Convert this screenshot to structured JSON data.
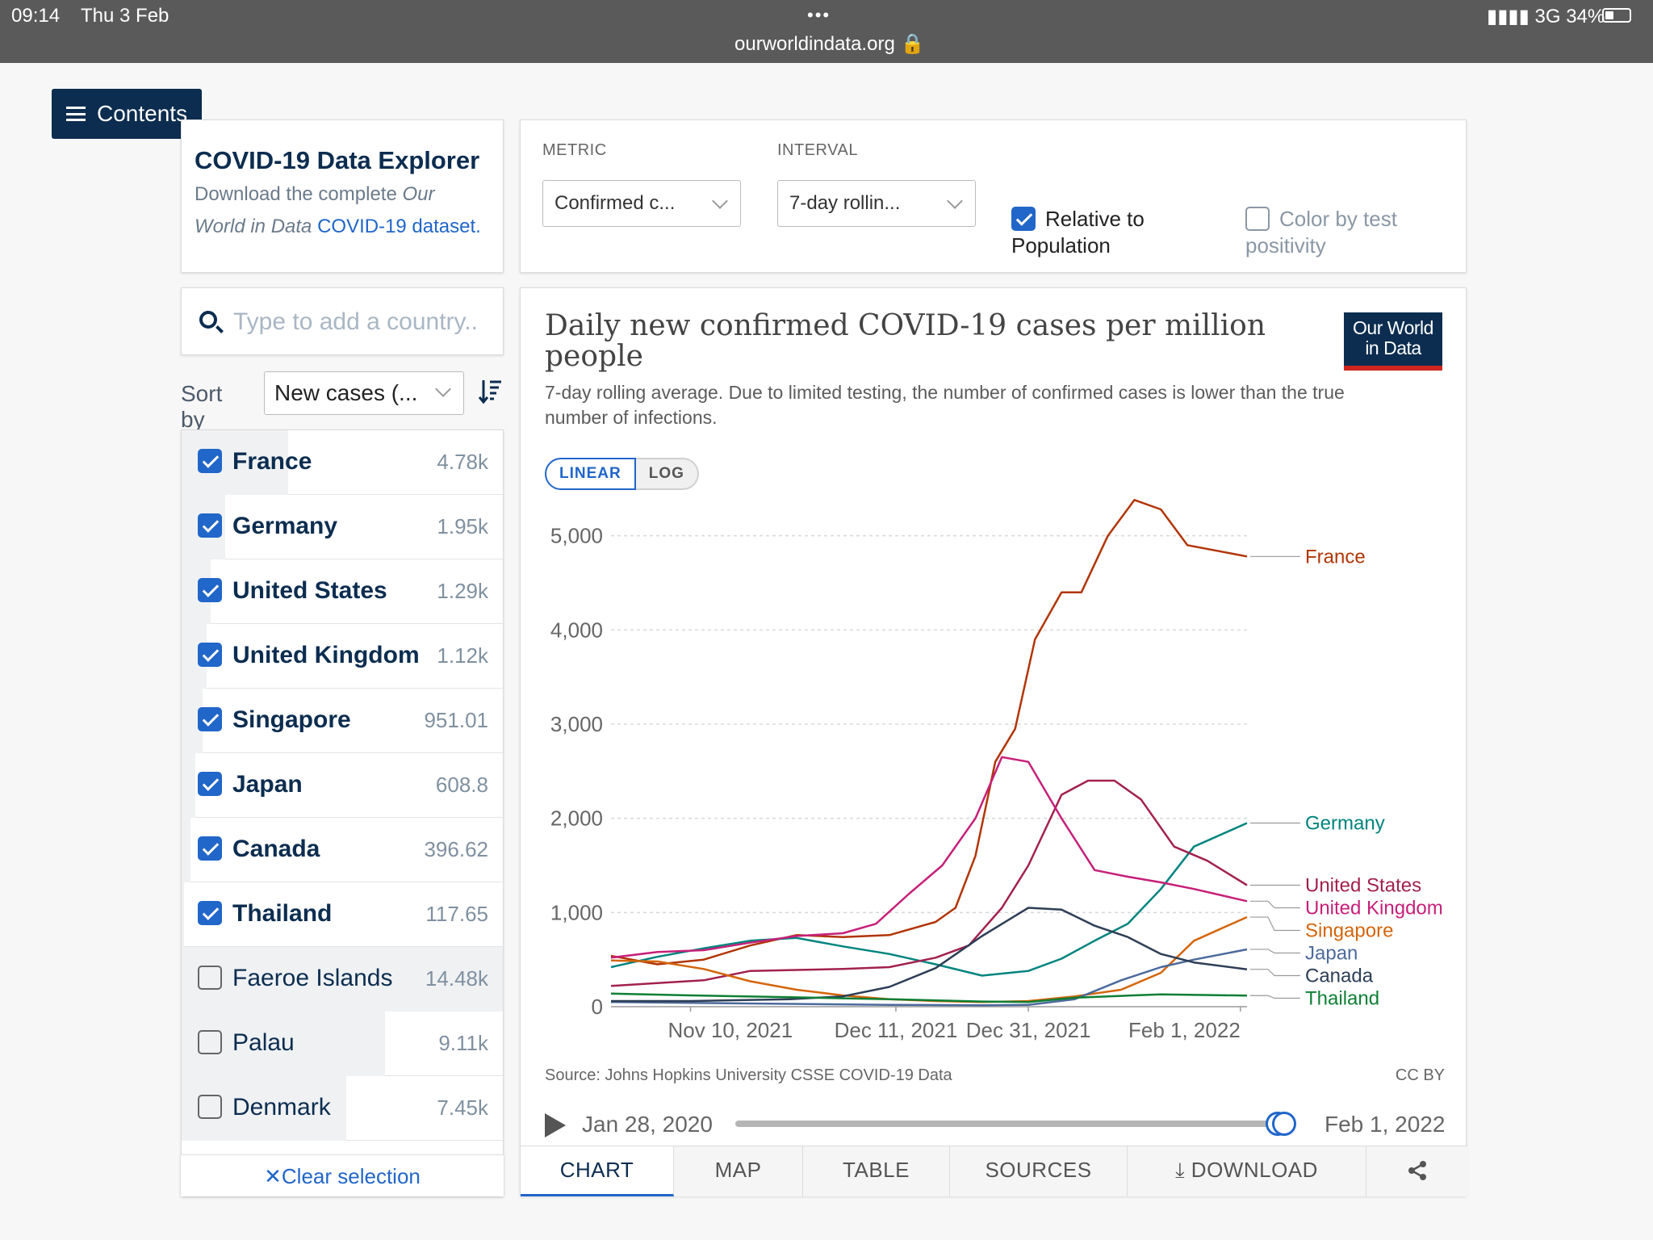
{
  "status_bar": {
    "time": "09:14",
    "date": "Thu 3 Feb",
    "url": "ourworldindata.org 🔒",
    "network": "3G",
    "battery": "34%",
    "more": "•••"
  },
  "contents_button": "Contents",
  "intro": {
    "title": "COVID-19 Data Explorer",
    "desc_1": "Download the complete ",
    "desc_italic": "Our World in Data",
    "desc_link": "COVID-19 dataset."
  },
  "controls": {
    "metric_label": "METRIC",
    "metric_value": "Confirmed c...",
    "interval_label": "INTERVAL",
    "interval_value": "7-day rollin...",
    "relative_label": "Relative to Population",
    "relative_checked": true,
    "color_test_label": "Color by test positivity",
    "color_test_checked": false
  },
  "search": {
    "placeholder": "Type to add a country.."
  },
  "sort": {
    "label": "Sort by",
    "value": "New cases (..."
  },
  "countries": [
    {
      "name": "France",
      "value": "4.78k",
      "checked": true,
      "share": 0.33
    },
    {
      "name": "Germany",
      "value": "1.95k",
      "checked": true,
      "share": 0.135
    },
    {
      "name": "United States",
      "value": "1.29k",
      "checked": true,
      "share": 0.09
    },
    {
      "name": "United Kingdom",
      "value": "1.12k",
      "checked": true,
      "share": 0.078
    },
    {
      "name": "Singapore",
      "value": "951.01",
      "checked": true,
      "share": 0.066
    },
    {
      "name": "Japan",
      "value": "608.8",
      "checked": true,
      "share": 0.042
    },
    {
      "name": "Canada",
      "value": "396.62",
      "checked": true,
      "share": 0.027
    },
    {
      "name": "Thailand",
      "value": "117.65",
      "checked": true,
      "share": 0.008
    },
    {
      "name": "Faeroe Islands",
      "value": "14.48k",
      "checked": false,
      "share": 1.0
    },
    {
      "name": "Palau",
      "value": "9.11k",
      "checked": false,
      "share": 0.63
    },
    {
      "name": "Denmark",
      "value": "7.45k",
      "checked": false,
      "share": 0.51
    }
  ],
  "clear_selection": "Clear selection",
  "chart": {
    "title": "Daily new confirmed COVID-19 cases per million people",
    "subtitle": "7-day rolling average. Due to limited testing, the number of confirmed cases is lower than the true number of infections.",
    "logo": "Our World in Data",
    "scale_linear": "LINEAR",
    "scale_log": "LOG",
    "source": "Source: Johns Hopkins University CSSE COVID-19 Data",
    "license": "CC BY"
  },
  "timeline": {
    "start": "Jan 28, 2020",
    "end": "Feb 1, 2022",
    "selection_start_fraction": 0.988,
    "selection_end_fraction": 1.0
  },
  "tabs": [
    "CHART",
    "MAP",
    "TABLE",
    "SOURCES",
    "DOWNLOAD",
    "share"
  ],
  "active_tab": "CHART",
  "chart_data": {
    "type": "line",
    "title": "Daily new confirmed COVID-19 cases per million people",
    "subtitle": "7-day rolling average. Due to limited testing, the number of confirmed cases is lower than the true number of infections.",
    "ylim": [
      0,
      5400
    ],
    "yticks": [
      0,
      1000,
      2000,
      3000,
      4000,
      5000
    ],
    "ytick_labels": [
      "0",
      "1,000",
      "2,000",
      "3,000",
      "4,000",
      "5,000"
    ],
    "xlim": [
      "2021-10-29",
      "2022-02-02"
    ],
    "xticks": [
      "2021-11-10",
      "2021-12-11",
      "2021-12-31",
      "2022-02-01"
    ],
    "xtick_labels": [
      "Nov 10, 2021",
      "Dec 11, 2021",
      "Dec 31, 2021",
      "Feb 1, 2022"
    ],
    "grid": "horizontal dashed",
    "legend": "line-end labels on the right",
    "series": [
      {
        "name": "France",
        "color": "#b13507",
        "points": [
          [
            "2021-10-29",
            540
          ],
          [
            "2021-11-05",
            450
          ],
          [
            "2021-11-12",
            500
          ],
          [
            "2021-11-19",
            650
          ],
          [
            "2021-11-26",
            760
          ],
          [
            "2021-12-03",
            740
          ],
          [
            "2021-12-10",
            760
          ],
          [
            "2021-12-17",
            900
          ],
          [
            "2021-12-20",
            1050
          ],
          [
            "2021-12-23",
            1600
          ],
          [
            "2021-12-26",
            2600
          ],
          [
            "2021-12-29",
            2950
          ],
          [
            "2022-01-01",
            3900
          ],
          [
            "2022-01-05",
            4400
          ],
          [
            "2022-01-08",
            4400
          ],
          [
            "2022-01-12",
            5000
          ],
          [
            "2022-01-16",
            5380
          ],
          [
            "2022-01-20",
            5280
          ],
          [
            "2022-01-24",
            4900
          ],
          [
            "2022-02-02",
            4780
          ]
        ]
      },
      {
        "name": "Germany",
        "color": "#00847e",
        "points": [
          [
            "2021-10-29",
            420
          ],
          [
            "2021-11-05",
            530
          ],
          [
            "2021-11-12",
            620
          ],
          [
            "2021-11-19",
            700
          ],
          [
            "2021-11-26",
            730
          ],
          [
            "2021-12-03",
            640
          ],
          [
            "2021-12-10",
            560
          ],
          [
            "2021-12-17",
            450
          ],
          [
            "2021-12-24",
            330
          ],
          [
            "2021-12-31",
            380
          ],
          [
            "2022-01-05",
            510
          ],
          [
            "2022-01-10",
            700
          ],
          [
            "2022-01-15",
            880
          ],
          [
            "2022-01-20",
            1250
          ],
          [
            "2022-01-25",
            1700
          ],
          [
            "2022-02-02",
            1950
          ]
        ]
      },
      {
        "name": "United States",
        "color": "#a2214d",
        "points": [
          [
            "2021-10-29",
            220
          ],
          [
            "2021-11-05",
            250
          ],
          [
            "2021-11-12",
            280
          ],
          [
            "2021-11-19",
            380
          ],
          [
            "2021-11-26",
            390
          ],
          [
            "2021-12-03",
            400
          ],
          [
            "2021-12-10",
            420
          ],
          [
            "2021-12-17",
            520
          ],
          [
            "2021-12-22",
            650
          ],
          [
            "2021-12-27",
            1050
          ],
          [
            "2021-12-31",
            1500
          ],
          [
            "2022-01-05",
            2250
          ],
          [
            "2022-01-09",
            2400
          ],
          [
            "2022-01-13",
            2400
          ],
          [
            "2022-01-17",
            2200
          ],
          [
            "2022-01-22",
            1700
          ],
          [
            "2022-01-27",
            1550
          ],
          [
            "2022-02-02",
            1290
          ]
        ]
      },
      {
        "name": "United Kingdom",
        "color": "#c62079",
        "points": [
          [
            "2021-10-29",
            520
          ],
          [
            "2021-11-05",
            580
          ],
          [
            "2021-11-12",
            600
          ],
          [
            "2021-11-19",
            680
          ],
          [
            "2021-11-26",
            750
          ],
          [
            "2021-12-03",
            780
          ],
          [
            "2021-12-08",
            880
          ],
          [
            "2021-12-13",
            1200
          ],
          [
            "2021-12-18",
            1500
          ],
          [
            "2021-12-23",
            2000
          ],
          [
            "2021-12-27",
            2650
          ],
          [
            "2021-12-31",
            2600
          ],
          [
            "2022-01-05",
            2000
          ],
          [
            "2022-01-10",
            1450
          ],
          [
            "2022-01-15",
            1380
          ],
          [
            "2022-01-20",
            1320
          ],
          [
            "2022-01-25",
            1250
          ],
          [
            "2022-02-02",
            1120
          ]
        ]
      },
      {
        "name": "Singapore",
        "color": "#d4650b",
        "points": [
          [
            "2021-10-29",
            490
          ],
          [
            "2021-11-05",
            480
          ],
          [
            "2021-11-12",
            400
          ],
          [
            "2021-11-19",
            270
          ],
          [
            "2021-11-26",
            180
          ],
          [
            "2021-12-03",
            120
          ],
          [
            "2021-12-10",
            80
          ],
          [
            "2021-12-17",
            60
          ],
          [
            "2021-12-24",
            50
          ],
          [
            "2021-12-31",
            60
          ],
          [
            "2022-01-07",
            110
          ],
          [
            "2022-01-14",
            180
          ],
          [
            "2022-01-20",
            360
          ],
          [
            "2022-01-25",
            700
          ],
          [
            "2022-02-02",
            951
          ]
        ]
      },
      {
        "name": "Japan",
        "color": "#4c6a9c",
        "points": [
          [
            "2021-10-29",
            50
          ],
          [
            "2021-11-10",
            40
          ],
          [
            "2021-11-25",
            30
          ],
          [
            "2021-12-10",
            20
          ],
          [
            "2021-12-24",
            15
          ],
          [
            "2021-12-31",
            20
          ],
          [
            "2022-01-07",
            80
          ],
          [
            "2022-01-14",
            280
          ],
          [
            "2022-01-20",
            420
          ],
          [
            "2022-01-25",
            500
          ],
          [
            "2022-02-02",
            609
          ]
        ]
      },
      {
        "name": "Canada",
        "color": "#2d3e56",
        "points": [
          [
            "2021-10-29",
            60
          ],
          [
            "2021-11-10",
            60
          ],
          [
            "2021-11-25",
            80
          ],
          [
            "2021-12-03",
            110
          ],
          [
            "2021-12-10",
            210
          ],
          [
            "2021-12-17",
            410
          ],
          [
            "2021-12-24",
            750
          ],
          [
            "2021-12-31",
            1050
          ],
          [
            "2022-01-05",
            1030
          ],
          [
            "2022-01-10",
            860
          ],
          [
            "2022-01-15",
            740
          ],
          [
            "2022-01-20",
            560
          ],
          [
            "2022-01-25",
            470
          ],
          [
            "2022-02-02",
            397
          ]
        ]
      },
      {
        "name": "Thailand",
        "color": "#0e7f34",
        "points": [
          [
            "2021-10-29",
            140
          ],
          [
            "2021-11-10",
            120
          ],
          [
            "2021-11-25",
            100
          ],
          [
            "2021-12-10",
            80
          ],
          [
            "2021-12-24",
            55
          ],
          [
            "2021-12-31",
            50
          ],
          [
            "2022-01-07",
            95
          ],
          [
            "2022-01-14",
            115
          ],
          [
            "2022-01-20",
            130
          ],
          [
            "2022-02-02",
            118
          ]
        ]
      }
    ]
  }
}
